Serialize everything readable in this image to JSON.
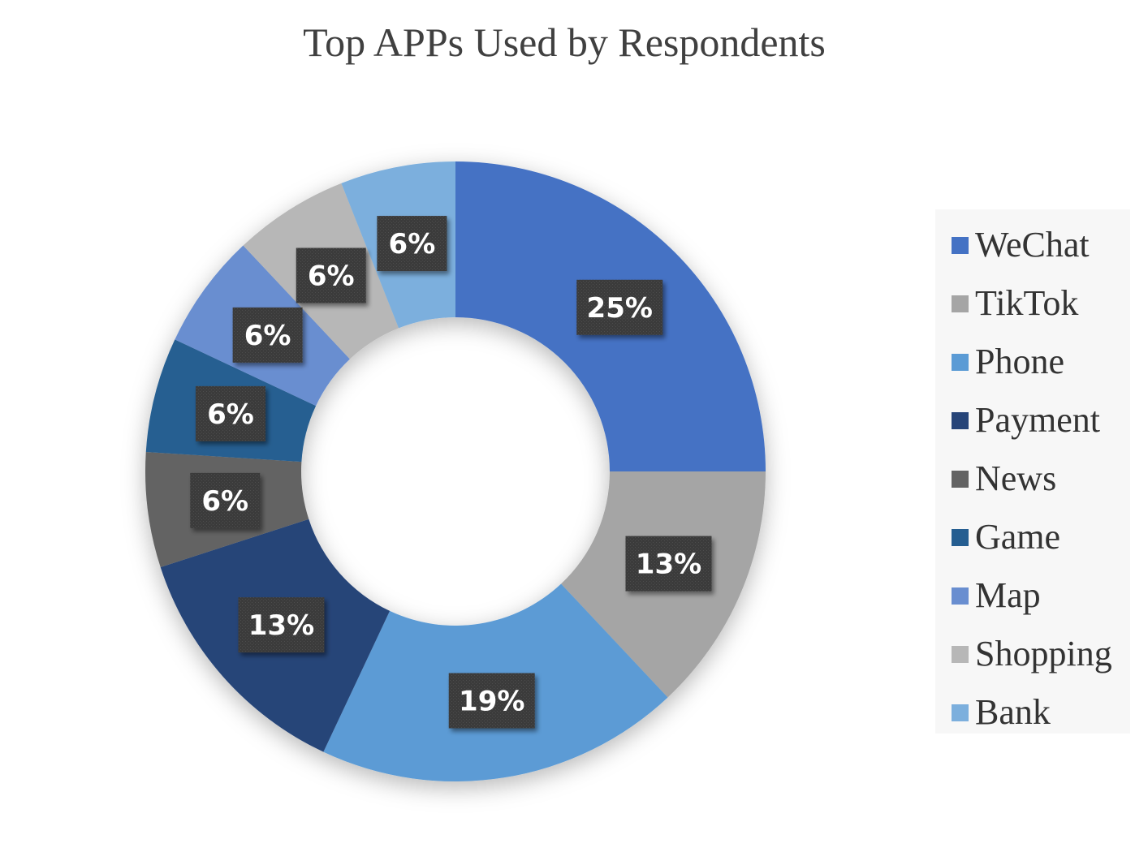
{
  "chart_data": {
    "type": "pie",
    "subtype": "donut",
    "title": "Top APPs Used by Respondents",
    "legend_position": "right",
    "data_labels_shown": true,
    "slices": [
      {
        "label": "WeChat",
        "value": 25,
        "display": "25%",
        "color": "#4472c4"
      },
      {
        "label": "TikTok",
        "value": 13,
        "display": "13%",
        "color": "#a5a5a5"
      },
      {
        "label": "Phone",
        "value": 19,
        "display": "19%",
        "color": "#5b9bd5"
      },
      {
        "label": "Payment",
        "value": 13,
        "display": "13%",
        "color": "#264478"
      },
      {
        "label": "News",
        "value": 6,
        "display": "6%",
        "color": "#636363"
      },
      {
        "label": "Game",
        "value": 6,
        "display": "6%",
        "color": "#255e91"
      },
      {
        "label": "Map",
        "value": 6,
        "display": "6%",
        "color": "#698ed0"
      },
      {
        "label": "Shopping",
        "value": 6,
        "display": "6%",
        "color": "#b7b7b7"
      },
      {
        "label": "Bank",
        "value": 6,
        "display": "6%",
        "color": "#7cafdd"
      }
    ]
  }
}
